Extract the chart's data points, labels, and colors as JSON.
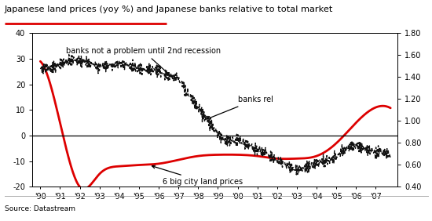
{
  "title": "Japanese land prices (yoy %) and Japanese banks relative to total market",
  "source": "Source: Datastream",
  "left_ylim": [
    -20,
    40
  ],
  "right_ylim": [
    0.4,
    1.8
  ],
  "left_yticks": [
    -20,
    -10,
    0,
    10,
    20,
    30,
    40
  ],
  "right_yticks": [
    0.4,
    0.6,
    0.8,
    1.0,
    1.2,
    1.4,
    1.6,
    1.8
  ],
  "xtick_labels": [
    "'90",
    "'91",
    "'92",
    "'93",
    "'94",
    "'95",
    "'96",
    "'97",
    "'98",
    "'99",
    "'00",
    "'01",
    "'02",
    "'03",
    "'04",
    "'05",
    "'06",
    "'07"
  ],
  "land_color": "#dd0000",
  "banks_color": "#111111",
  "title_underline_color": "#dd0000",
  "background_color": "#ffffff"
}
